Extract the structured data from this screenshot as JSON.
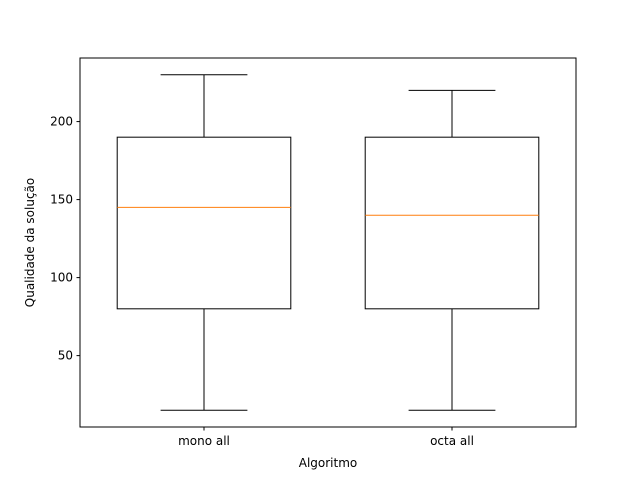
{
  "chart_data": {
    "type": "boxplot",
    "title": "",
    "xlabel": "Algoritmo",
    "ylabel": "Qualidade da solução",
    "categories": [
      "mono all",
      "octa all"
    ],
    "boxes": [
      {
        "label": "mono all",
        "whisker_low": 15,
        "q1": 80,
        "median": 145,
        "q3": 190,
        "whisker_high": 230
      },
      {
        "label": "octa all",
        "whisker_low": 15,
        "q1": 80,
        "median": 140,
        "q3": 190,
        "whisker_high": 220
      }
    ],
    "ylim": [
      4.25,
      240.75
    ],
    "yticks": [
      50,
      100,
      150,
      200
    ],
    "grid": false,
    "colors": {
      "box": "#000000",
      "median": "#ff7f0e",
      "axes": "#000000"
    }
  }
}
